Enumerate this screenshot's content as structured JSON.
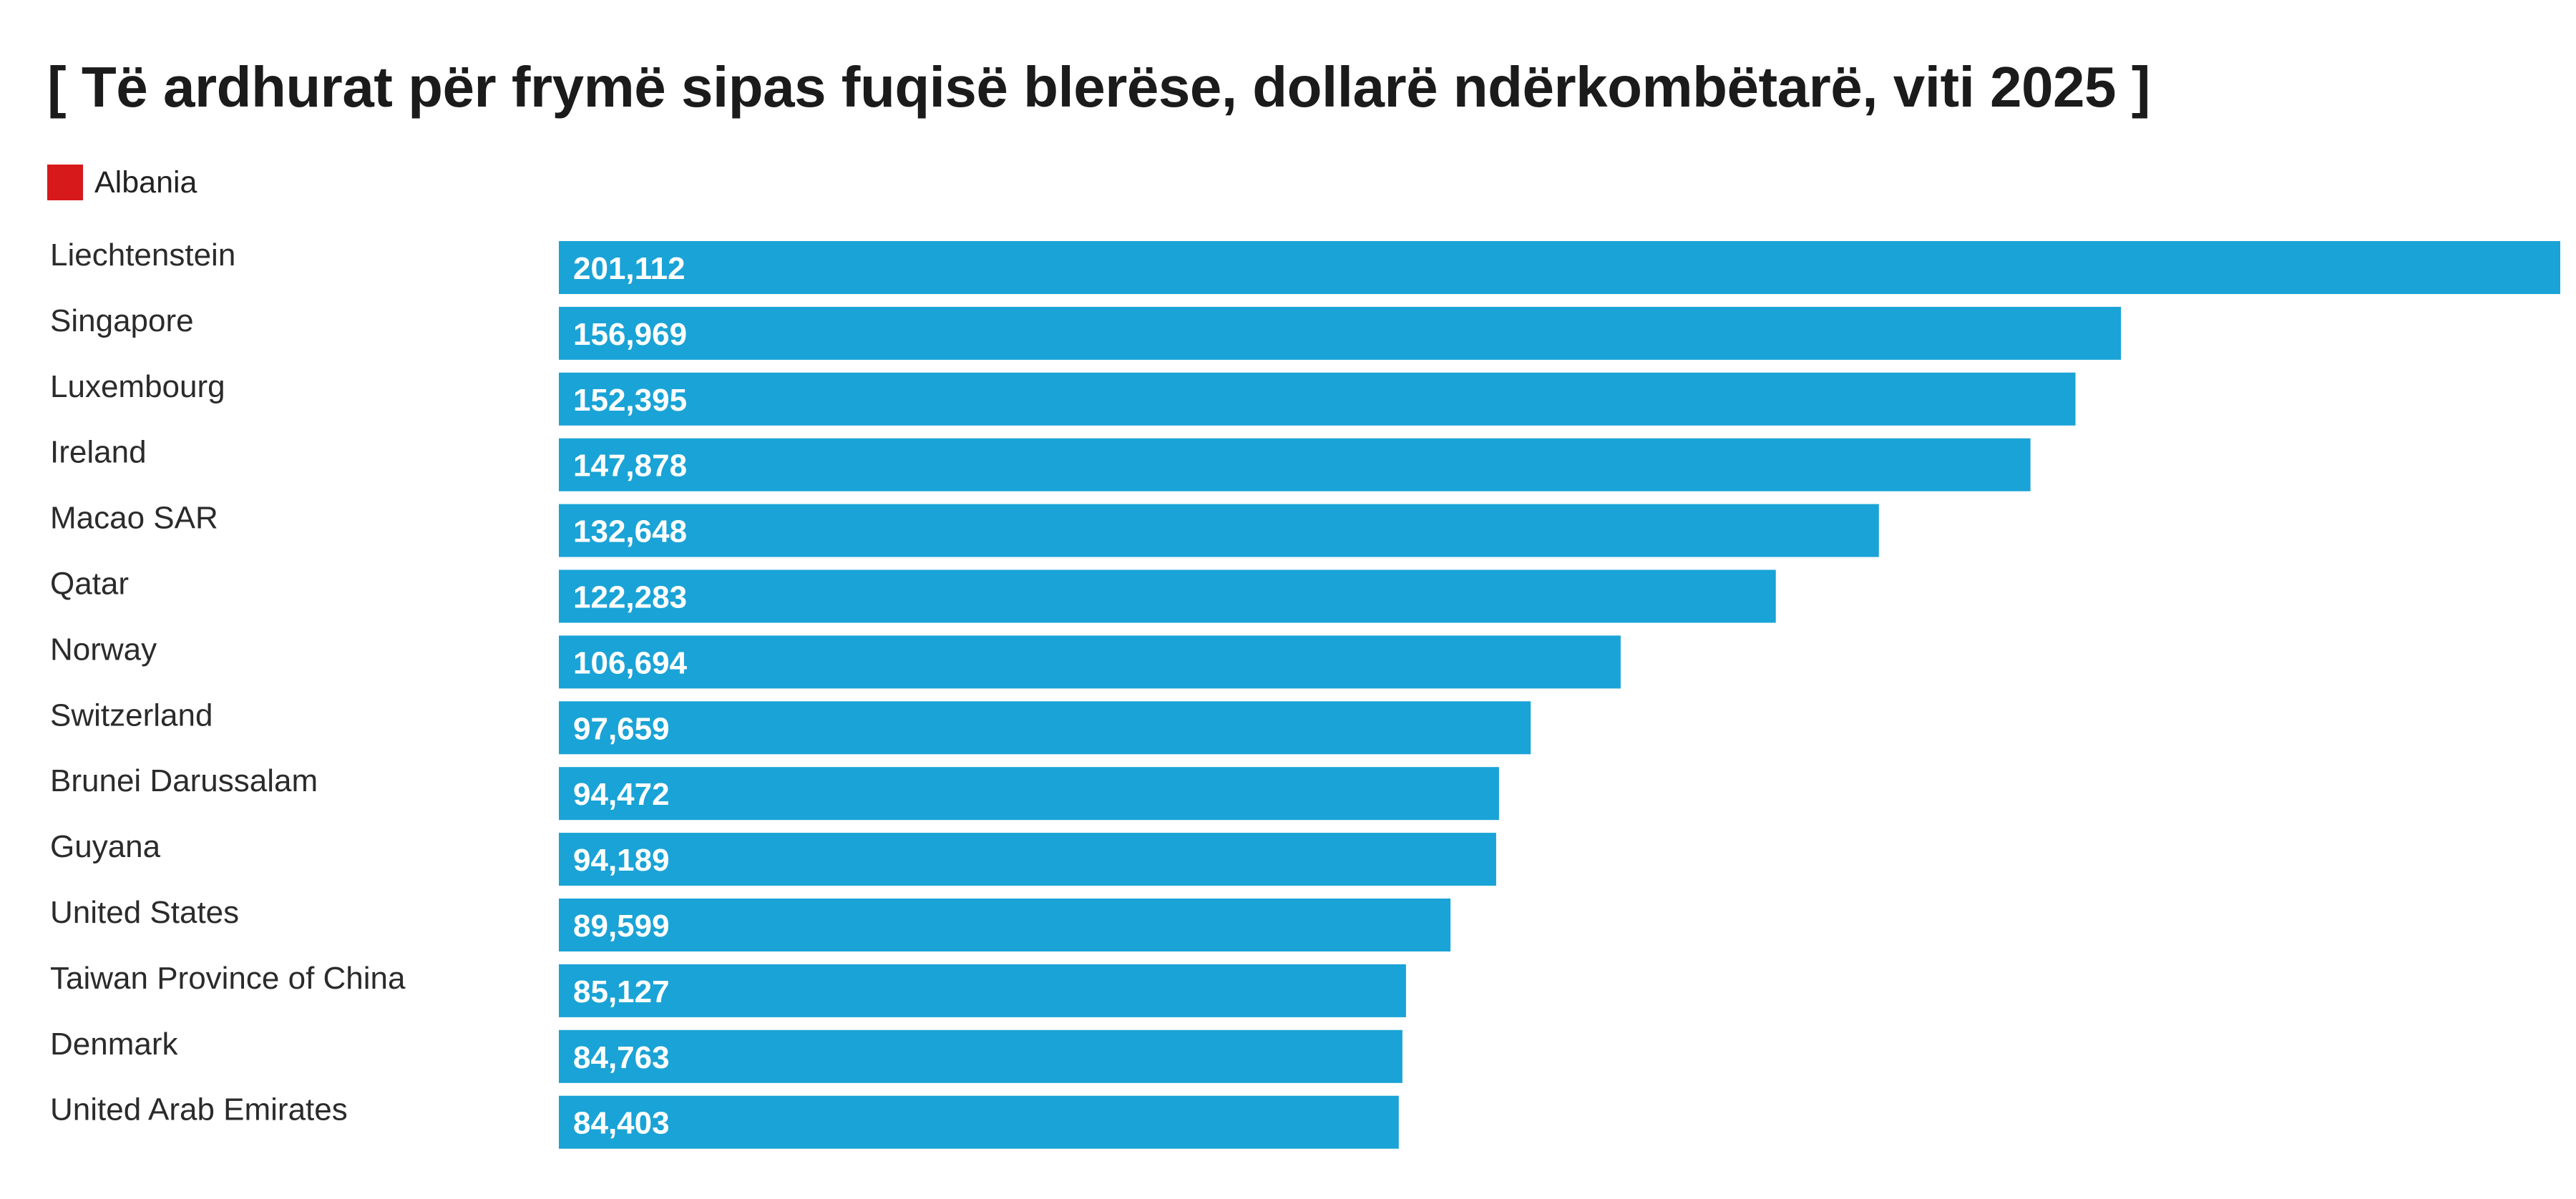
{
  "chart_data": {
    "type": "bar",
    "orientation": "horizontal",
    "title": "[ Të ardhurat për frymë sipas fuqisë blerëse, dollarë ndërkombëtarë, viti 2025 ]",
    "legend": {
      "entries": [
        {
          "label": "Albania",
          "color": "#d7191c"
        }
      ],
      "placement": "top-left"
    },
    "bar_color": "#1aa3d6",
    "grid": false,
    "categories": [
      "Liechtenstein",
      "Singapore",
      "Luxembourg",
      "Ireland",
      "Macao SAR",
      "Qatar",
      "Norway",
      "Switzerland",
      "Brunei Darussalam",
      "Guyana",
      "United States",
      "Taiwan Province of China",
      "Denmark",
      "United Arab Emirates"
    ],
    "values": [
      201112,
      156969,
      152395,
      147878,
      132648,
      122283,
      106694,
      97659,
      94472,
      94189,
      89599,
      85127,
      84763,
      84403
    ],
    "value_labels": [
      "201,112",
      "156,969",
      "152,395",
      "147,878",
      "132,648",
      "122,283",
      "106,694",
      "97,659",
      "94,472",
      "94,189",
      "89,599",
      "85,127",
      "84,763",
      "84,403"
    ],
    "xlim": [
      0,
      201112
    ]
  }
}
